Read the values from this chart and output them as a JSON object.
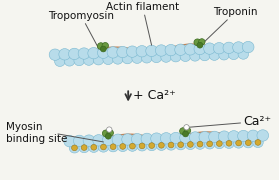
{
  "bg_color": "#f5f5f0",
  "actin_color": "#b8dcea",
  "actin_edge": "#7ab8d0",
  "tropomyosin_color1": "#b87040",
  "tropomyosin_color2": "#9060a0",
  "troponin_color": "#6a9940",
  "troponin_edge": "#3a6920",
  "troponin_dark": "#4a7a28",
  "myosin_site_color": "#d4aa30",
  "myosin_site_edge": "#a07818",
  "text_color": "#111111",
  "arrow_color": "#333333",
  "label_tropomyosin": "Tropomyosin",
  "label_actin": "Actin filament",
  "label_troponin": "Troponin",
  "label_ca_arrow": "+ Ca²⁺",
  "label_myosin": "Myosin\nbinding site",
  "label_ca2": "Ca²⁺",
  "label_fontsize": 7.5
}
